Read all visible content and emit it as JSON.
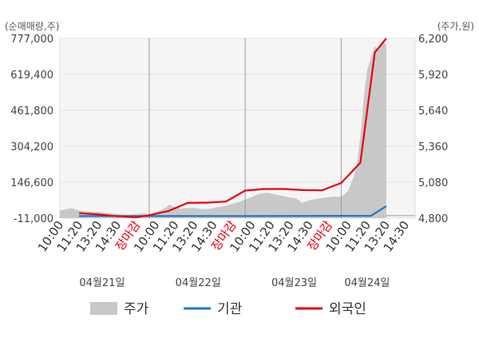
{
  "chart_data": {
    "type": "line",
    "left_axis": {
      "unit_label": "(순매매량,주)",
      "ticks": [
        777000,
        619400,
        461800,
        304200,
        146600,
        -11000
      ],
      "tick_labels": [
        "777,000",
        "619,400",
        "461,800",
        "304,200",
        "146,600",
        "-11,000"
      ],
      "range": [
        -11000,
        777000
      ]
    },
    "right_axis": {
      "unit_label": "(주가,원)",
      "ticks": [
        6200,
        5920,
        5640,
        5360,
        5080,
        4800
      ],
      "tick_labels": [
        "6,200",
        "5,920",
        "5,640",
        "5,360",
        "5,080",
        "4,800"
      ],
      "range": [
        4800,
        6200
      ]
    },
    "x_slots": [
      "10:00",
      "11:20",
      "13:20",
      "14:30",
      "장마감",
      "10:00",
      "11:20",
      "13:20",
      "14:30",
      "장마감",
      "10:00",
      "11:20",
      "13:20",
      "14:30",
      "장마감",
      "10:00",
      "11:20",
      "13:20",
      "14:30"
    ],
    "x_label_colors": [
      "#333333",
      "#333333",
      "#333333",
      "#333333",
      "#e60012",
      "#333333",
      "#333333",
      "#333333",
      "#333333",
      "#e60012",
      "#333333",
      "#333333",
      "#333333",
      "#333333",
      "#e60012",
      "#333333",
      "#333333",
      "#333333",
      "#333333"
    ],
    "x_range": [
      0,
      18.5
    ],
    "day_dividers": [
      4.65,
      9.65,
      14.65
    ],
    "dates": [
      {
        "label": "04월21일",
        "x": 2.2
      },
      {
        "label": "04월22일",
        "x": 7.2
      },
      {
        "label": "04월23일",
        "x": 12.2
      },
      {
        "label": "04월24일",
        "x": 16.0
      }
    ],
    "series": [
      {
        "name": "주가",
        "kind": "area",
        "axis": "right",
        "color": "#c8c8c8",
        "points": [
          [
            0,
            4858
          ],
          [
            0.3,
            4870
          ],
          [
            0.6,
            4878
          ],
          [
            0.9,
            4862
          ],
          [
            1.2,
            4855
          ],
          [
            1.6,
            4850
          ],
          [
            2.0,
            4848
          ],
          [
            2.4,
            4842
          ],
          [
            2.8,
            4835
          ],
          [
            3.2,
            4830
          ],
          [
            3.6,
            4827
          ],
          [
            4.0,
            4832
          ],
          [
            4.4,
            4838
          ],
          [
            4.65,
            4830
          ],
          [
            4.9,
            4840
          ],
          [
            5.2,
            4860
          ],
          [
            5.5,
            4880
          ],
          [
            5.7,
            4905
          ],
          [
            6.0,
            4885
          ],
          [
            6.3,
            4872
          ],
          [
            6.6,
            4878
          ],
          [
            7.0,
            4880
          ],
          [
            7.4,
            4870
          ],
          [
            7.8,
            4872
          ],
          [
            8.2,
            4885
          ],
          [
            8.6,
            4895
          ],
          [
            9.0,
            4912
          ],
          [
            9.4,
            4930
          ],
          [
            9.65,
            4945
          ],
          [
            10.0,
            4965
          ],
          [
            10.4,
            4990
          ],
          [
            10.8,
            4998
          ],
          [
            11.2,
            4985
          ],
          [
            11.6,
            4972
          ],
          [
            12.0,
            4960
          ],
          [
            12.3,
            4955
          ],
          [
            12.6,
            4920
          ],
          [
            12.9,
            4935
          ],
          [
            13.3,
            4948
          ],
          [
            13.8,
            4960
          ],
          [
            14.3,
            4970
          ],
          [
            14.65,
            4965
          ],
          [
            15.0,
            5010
          ],
          [
            15.3,
            5120
          ],
          [
            15.5,
            5250
          ],
          [
            15.7,
            5500
          ],
          [
            15.85,
            5780
          ],
          [
            16.0,
            5950
          ],
          [
            16.2,
            6050
          ],
          [
            16.4,
            6140
          ],
          [
            16.6,
            6110
          ],
          [
            16.8,
            6180
          ],
          [
            17.0,
            6150
          ]
        ]
      },
      {
        "name": "기관",
        "kind": "line",
        "axis": "left",
        "color": "#1e78c8",
        "points": [
          [
            1.0,
            -2000
          ],
          [
            4.0,
            -2000
          ],
          [
            4.65,
            -2000
          ],
          [
            9.65,
            -2000
          ],
          [
            14.65,
            -1000
          ],
          [
            15.2,
            -1000
          ],
          [
            16.2,
            -1000
          ],
          [
            17.0,
            42000
          ]
        ]
      },
      {
        "name": "외국인",
        "kind": "line",
        "axis": "left",
        "color": "#e60012",
        "points": [
          [
            1.0,
            11000
          ],
          [
            2.0,
            5000
          ],
          [
            3.0,
            -3000
          ],
          [
            4.0,
            -7000
          ],
          [
            4.65,
            2000
          ],
          [
            5.65,
            20000
          ],
          [
            6.65,
            56000
          ],
          [
            7.65,
            57000
          ],
          [
            8.65,
            62000
          ],
          [
            9.65,
            110000
          ],
          [
            10.65,
            117000
          ],
          [
            11.65,
            117000
          ],
          [
            12.65,
            112000
          ],
          [
            13.65,
            111000
          ],
          [
            14.65,
            143000
          ],
          [
            15.65,
            232000
          ],
          [
            16.4,
            715000
          ],
          [
            17.0,
            777000
          ]
        ]
      }
    ],
    "legend": [
      {
        "label": "주가",
        "color": "#c8c8c8",
        "kind": "box"
      },
      {
        "label": "기관",
        "color": "#1e78c8",
        "kind": "line"
      },
      {
        "label": "외국인",
        "color": "#e60012",
        "kind": "line"
      }
    ],
    "grid": true,
    "legend_position": "bottom"
  }
}
